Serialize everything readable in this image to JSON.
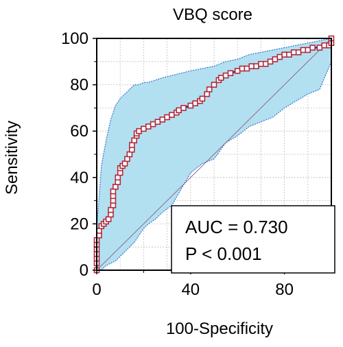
{
  "chart_data": {
    "type": "line",
    "title": "VBQ score",
    "xlabel": "100-Specificity",
    "ylabel": "Sensitivity",
    "xlim": [
      0,
      100
    ],
    "ylim": [
      0,
      100
    ],
    "xticks": [
      "0",
      "40",
      "80"
    ],
    "xtick_values": [
      0,
      40,
      80
    ],
    "yticks": [
      "0",
      "20",
      "40",
      "60",
      "80",
      "100"
    ],
    "ytick_values": [
      0,
      20,
      40,
      60,
      80,
      100
    ],
    "grid": true,
    "reference_line": {
      "x": [
        0,
        100
      ],
      "y": [
        0,
        100
      ]
    },
    "series": [
      {
        "x": [
          0,
          0,
          0,
          0,
          0,
          0,
          0,
          1,
          1,
          2,
          3,
          4,
          5,
          6,
          6,
          7,
          7,
          7,
          7,
          8,
          9,
          9,
          10,
          10,
          11,
          12,
          13,
          14,
          15,
          15,
          16,
          17,
          17,
          18,
          20,
          22,
          24,
          26,
          28,
          30,
          32,
          34,
          35,
          37,
          40,
          42,
          44,
          45,
          47,
          48,
          50,
          52,
          53,
          55,
          57,
          60,
          62,
          64,
          66,
          68,
          70,
          72,
          74,
          76,
          78,
          80,
          82,
          84,
          86,
          88,
          90,
          92,
          95,
          97,
          99,
          100,
          100
        ],
        "y": [
          0,
          3,
          5,
          7,
          9,
          11,
          13,
          15,
          17,
          19,
          20,
          21,
          22,
          24,
          26,
          28,
          30,
          32,
          34,
          36,
          38,
          40,
          42,
          44,
          45,
          46,
          48,
          50,
          52,
          54,
          56,
          58,
          59,
          60,
          61,
          62,
          63,
          64,
          65,
          66,
          67,
          68,
          69,
          70,
          71,
          72,
          73,
          74,
          76,
          78,
          80,
          82,
          83,
          84,
          85,
          86,
          87,
          87,
          88,
          88,
          89,
          89,
          90,
          91,
          92,
          93,
          93,
          94,
          94,
          95,
          95,
          96,
          96,
          97,
          97,
          98,
          100
        ]
      }
    ],
    "confidence_band": {
      "x": [
        0,
        2,
        4,
        6,
        8,
        10,
        12,
        14,
        16,
        18,
        20,
        22,
        25,
        28,
        32,
        36,
        40,
        45,
        50,
        55,
        60,
        65,
        70,
        75,
        80,
        85,
        90,
        95,
        100
      ],
      "upper": [
        18,
        45,
        56,
        65,
        71,
        74,
        76,
        78,
        80,
        80,
        81,
        81,
        82,
        83,
        84,
        85,
        86,
        87,
        88,
        90,
        91,
        93,
        94,
        95,
        96,
        97,
        98,
        99,
        100
      ],
      "lower": [
        0,
        0,
        2,
        3,
        4,
        6,
        8,
        10,
        12,
        15,
        18,
        20,
        22,
        25,
        28,
        35,
        42,
        46,
        48,
        55,
        58,
        62,
        64,
        66,
        70,
        73,
        76,
        78,
        90
      ]
    },
    "colors": {
      "band_fill": "#b3e0f0",
      "band_edge": "#2f6fd0",
      "roc_line": "#0a2a8a",
      "marker_edge": "#b0283c",
      "marker_fill": "#ffffff",
      "reference_line": "#8a6a8a",
      "grid": "#bdbdbd"
    },
    "annotations": [
      "AUC = 0.730",
      "P < 0.001"
    ]
  }
}
